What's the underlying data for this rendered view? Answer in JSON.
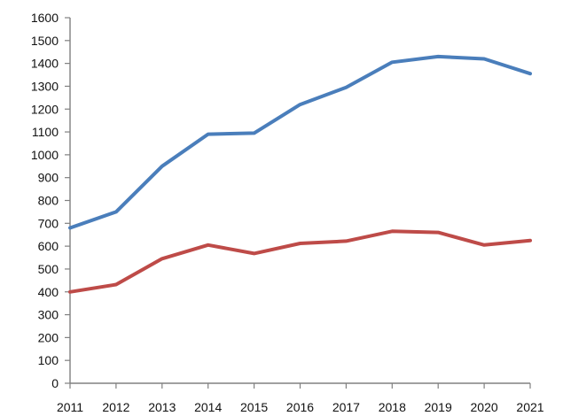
{
  "chart_data": {
    "type": "line",
    "title": "",
    "xlabel": "",
    "ylabel": "",
    "categories": [
      "2011",
      "2012",
      "2013",
      "2014",
      "2015",
      "2016",
      "2017",
      "2018",
      "2019",
      "2020",
      "2021"
    ],
    "ylim": [
      0,
      1600
    ],
    "yticks": [
      0,
      100,
      200,
      300,
      400,
      500,
      600,
      700,
      800,
      900,
      1000,
      1100,
      1200,
      1300,
      1400,
      1500,
      1600
    ],
    "grid": false,
    "legend": "none",
    "series": [
      {
        "color": "#4a7ebb",
        "values": [
          680,
          750,
          950,
          1090,
          1095,
          1220,
          1295,
          1405,
          1430,
          1420,
          1355
        ]
      },
      {
        "color": "#be4b48",
        "values": [
          400,
          432,
          545,
          605,
          568,
          612,
          622,
          665,
          660,
          605,
          625
        ]
      }
    ]
  }
}
